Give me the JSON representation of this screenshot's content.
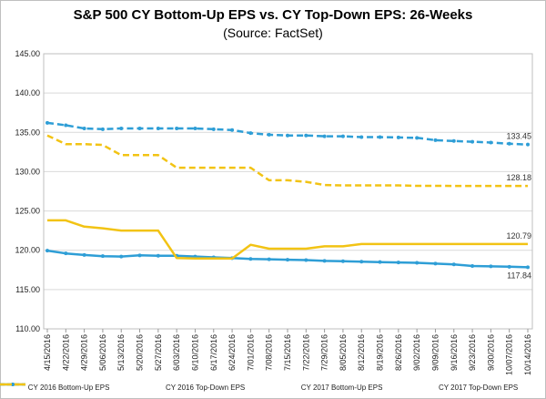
{
  "chart_data": {
    "type": "line",
    "title": "S&P 500 CY Bottom-Up EPS vs. CY Top-Down EPS: 26-Weeks",
    "subtitle": "(Source: FactSet)",
    "xlabel": "",
    "ylabel": "",
    "ylim": [
      110,
      145
    ],
    "yticks": [
      "110.00",
      "115.00",
      "120.00",
      "125.00",
      "130.00",
      "135.00",
      "140.00",
      "145.00"
    ],
    "grid": true,
    "legend": "bottom",
    "categories": [
      "4/15/2016",
      "4/22/2016",
      "4/29/2016",
      "5/06/2016",
      "5/13/2016",
      "5/20/2016",
      "5/27/2016",
      "6/03/2016",
      "6/10/2016",
      "6/17/2016",
      "6/24/2016",
      "7/01/2016",
      "7/08/2016",
      "7/15/2016",
      "7/22/2016",
      "7/29/2016",
      "8/05/2016",
      "8/12/2016",
      "8/19/2016",
      "8/26/2016",
      "9/02/2016",
      "9/09/2016",
      "9/16/2016",
      "9/23/2016",
      "9/30/2016",
      "10/07/2016",
      "10/14/2016"
    ],
    "series": [
      {
        "name": "CY 2016 Bottom-Up EPS",
        "color": "#2e9ed6",
        "dash": false,
        "marker": true,
        "values": [
          119.95,
          119.6,
          119.4,
          119.25,
          119.2,
          119.35,
          119.3,
          119.3,
          119.2,
          119.1,
          119.0,
          118.9,
          118.85,
          118.8,
          118.75,
          118.65,
          118.6,
          118.55,
          118.5,
          118.45,
          118.4,
          118.3,
          118.2,
          118.0,
          117.95,
          117.9,
          117.84
        ],
        "end_label": "117.84"
      },
      {
        "name": "CY 2016 Top-Down EPS",
        "color": "#f2c314",
        "dash": false,
        "marker": false,
        "values": [
          123.8,
          123.8,
          123.0,
          122.8,
          122.5,
          122.5,
          122.5,
          119.0,
          118.95,
          118.95,
          118.95,
          120.7,
          120.2,
          120.2,
          120.2,
          120.5,
          120.5,
          120.79,
          120.79,
          120.79,
          120.79,
          120.79,
          120.79,
          120.79,
          120.79,
          120.79,
          120.79
        ],
        "end_label": "120.79"
      },
      {
        "name": "CY 2017 Bottom-Up EPS",
        "color": "#2e9ed6",
        "dash": true,
        "marker": true,
        "values": [
          136.2,
          135.9,
          135.5,
          135.4,
          135.5,
          135.5,
          135.5,
          135.5,
          135.5,
          135.4,
          135.3,
          134.9,
          134.7,
          134.6,
          134.6,
          134.5,
          134.5,
          134.4,
          134.4,
          134.35,
          134.3,
          134.0,
          133.9,
          133.8,
          133.7,
          133.55,
          133.45
        ],
        "end_label": "133.45"
      },
      {
        "name": "CY 2017 Top-Down EPS",
        "color": "#f2c314",
        "dash": true,
        "marker": false,
        "values": [
          134.6,
          133.5,
          133.5,
          133.4,
          132.1,
          132.1,
          132.1,
          130.5,
          130.5,
          130.5,
          130.5,
          130.5,
          128.9,
          128.9,
          128.7,
          128.3,
          128.25,
          128.25,
          128.25,
          128.25,
          128.2,
          128.2,
          128.18,
          128.18,
          128.18,
          128.18,
          128.18
        ],
        "end_label": "128.18"
      }
    ]
  }
}
